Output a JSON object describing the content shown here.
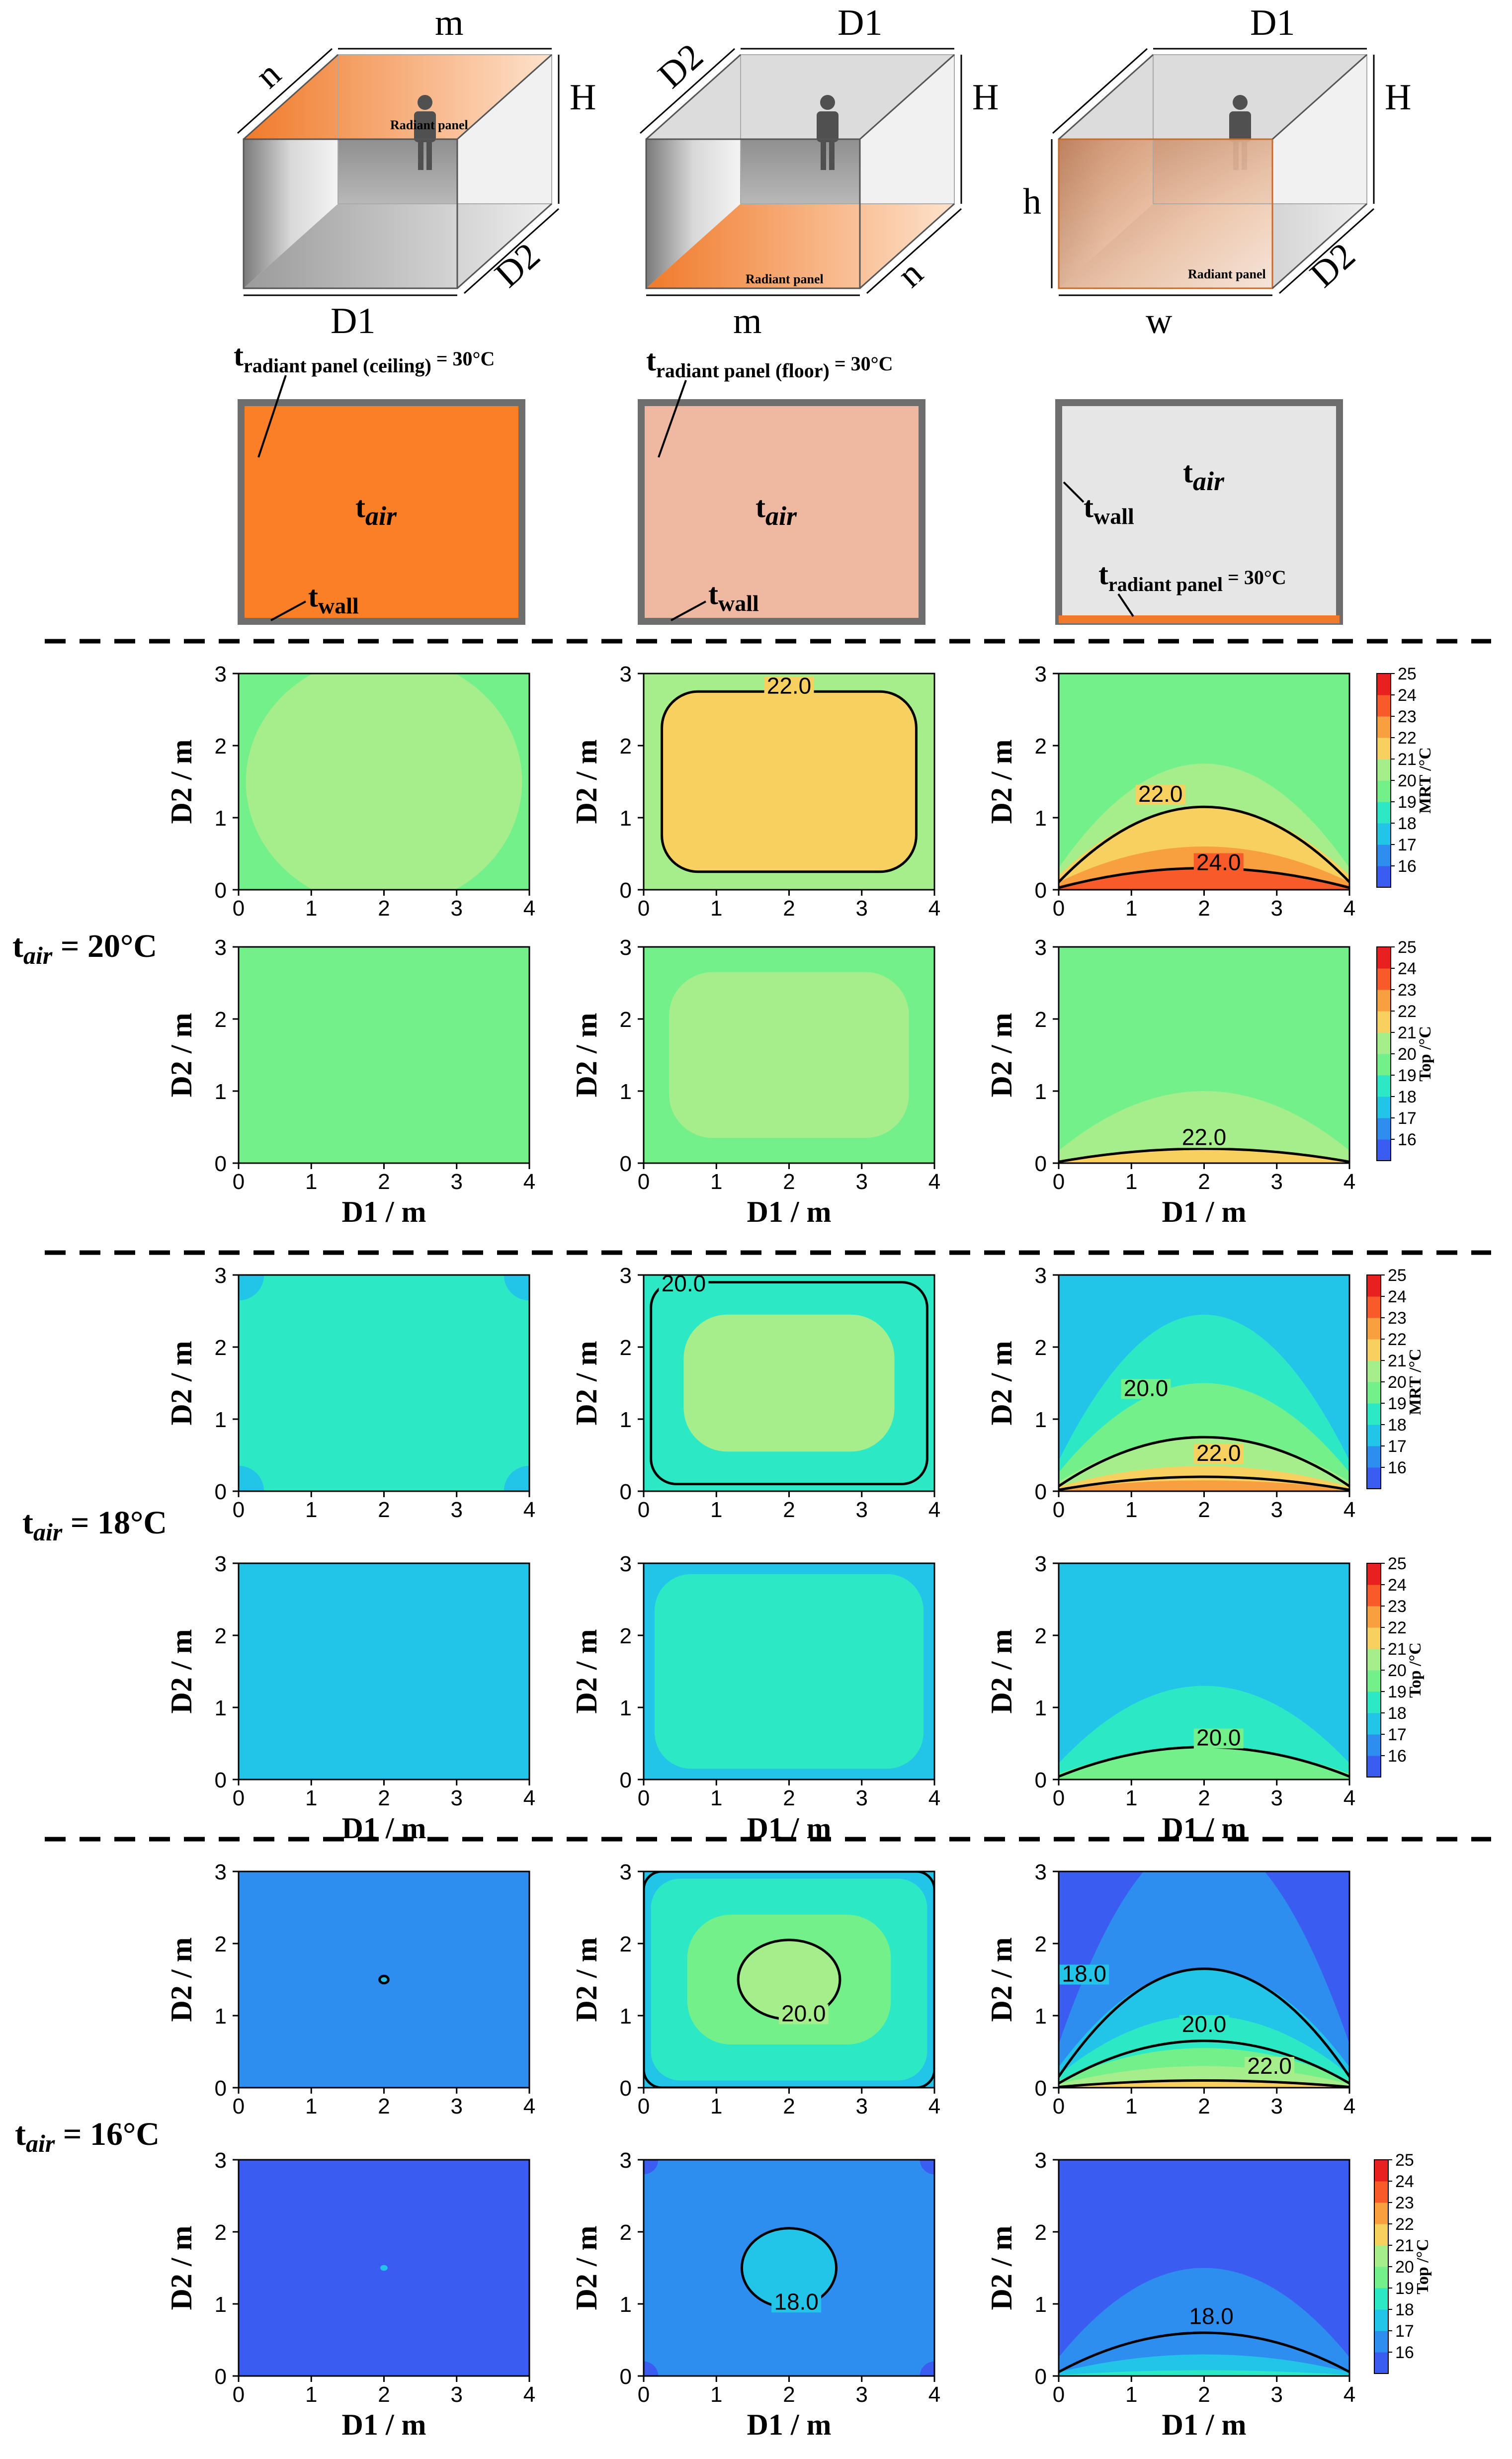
{
  "figure": {
    "geometry": [
      {
        "id": "ceiling",
        "dims": {
          "width_top": "m",
          "depth_top": "n",
          "width_bottom": "D1",
          "depth_side": "D2",
          "height": "H"
        },
        "panel_label": "Radiant panel",
        "panel_color": "#f07a2a"
      },
      {
        "id": "floor",
        "dims": {
          "width_top": "D1",
          "depth_top": "D2",
          "width_bottom": "m",
          "depth_side": "n",
          "height": "H"
        },
        "panel_label": "Radiant panel",
        "panel_color": "#f07a2a"
      },
      {
        "id": "wall",
        "dims": {
          "width_top": "D1",
          "height_front": "h",
          "width_bottom": "w",
          "depth_side": "D2",
          "height": "H"
        },
        "panel_label": "Radiant panel",
        "panel_color": "#f07a2a"
      }
    ],
    "sections": [
      {
        "id": "ceiling",
        "temp_label": "t",
        "temp_sub": "radiant panel (ceiling)",
        "temp_eq": " = 30°C",
        "air": "t",
        "air_sub": "air",
        "wall": "t",
        "wall_sub": "wall",
        "fill": "#fa7f26"
      },
      {
        "id": "floor",
        "temp_label": "t",
        "temp_sub": "radiant panel (floor)",
        "temp_eq": " = 30°C",
        "air": "t",
        "air_sub": "air",
        "wall": "t",
        "wall_sub": "wall",
        "fill": "#efb8a0"
      },
      {
        "id": "wall",
        "temp_label": "t",
        "temp_sub": "radiant panel",
        "temp_eq": " = 30°C",
        "air": "t",
        "air_sub": "air",
        "wall": "t",
        "wall_sub": "wall",
        "fill": "#e6e6e6"
      }
    ],
    "row_labels": [
      {
        "t": "t",
        "sub": "air",
        "eq": " = 20°C"
      },
      {
        "t": "t",
        "sub": "air",
        "eq": " = 18°C"
      },
      {
        "t": "t",
        "sub": "air",
        "eq": " = 16°C"
      }
    ],
    "axis": {
      "xlabel": "D1 / m",
      "ylabel": "D2 / m",
      "xticks": [
        "0",
        "1",
        "2",
        "3",
        "4"
      ],
      "yticks": [
        "0",
        "1",
        "2",
        "3"
      ]
    },
    "colorbar": {
      "ticks": [
        "25",
        "24",
        "23",
        "22",
        "21",
        "20",
        "19",
        "18",
        "17",
        "16"
      ],
      "mrt_label": "MRT /°C",
      "top_label": "Top /°C",
      "colors": [
        "#7a2ff0",
        "#3a5cf0",
        "#2d8ef0",
        "#22c4e8",
        "#2de8c4",
        "#74f08a",
        "#a6ee8c",
        "#f8d060",
        "#f8a040",
        "#f85a2a",
        "#e82020"
      ]
    }
  },
  "chart_data": [
    {
      "type": "heatmap",
      "row": "t_air = 20°C",
      "panel": "ceiling",
      "quantity": "MRT",
      "xlim": [
        0,
        4
      ],
      "ylim": [
        0,
        3
      ],
      "background_level": "20-21",
      "regions": [
        "central 21-22 region"
      ],
      "contours": []
    },
    {
      "type": "heatmap",
      "row": "t_air = 20°C",
      "panel": "floor",
      "quantity": "MRT",
      "xlim": [
        0,
        4
      ],
      "ylim": [
        0,
        3
      ],
      "background_level": "21-22",
      "regions": [
        "central 22-23 region"
      ],
      "contours": [
        {
          "level": 22.0,
          "label": "22.0"
        }
      ]
    },
    {
      "type": "heatmap",
      "row": "t_air = 20°C",
      "panel": "wall",
      "quantity": "MRT",
      "xlim": [
        0,
        4
      ],
      "ylim": [
        0,
        3
      ],
      "background_level": "20-21",
      "regions": [
        "bands increasing toward D2 = 0"
      ],
      "contours": [
        {
          "level": 22.0,
          "label": "22.0"
        },
        {
          "level": 24.0,
          "label": "24.0"
        }
      ]
    },
    {
      "type": "heatmap",
      "row": "t_air = 20°C",
      "panel": "ceiling",
      "quantity": "Top",
      "xlim": [
        0,
        4
      ],
      "ylim": [
        0,
        3
      ],
      "background_level": "20-21",
      "regions": [],
      "contours": []
    },
    {
      "type": "heatmap",
      "row": "t_air = 20°C",
      "panel": "floor",
      "quantity": "Top",
      "xlim": [
        0,
        4
      ],
      "ylim": [
        0,
        3
      ],
      "background_level": "20-21",
      "regions": [
        "central 21-22 region"
      ],
      "contours": []
    },
    {
      "type": "heatmap",
      "row": "t_air = 20°C",
      "panel": "wall",
      "quantity": "Top",
      "xlim": [
        0,
        4
      ],
      "ylim": [
        0,
        3
      ],
      "background_level": "20-21",
      "regions": [
        "bands near D2 = 0"
      ],
      "contours": [
        {
          "level": 22.0,
          "label": "22.0"
        }
      ]
    },
    {
      "type": "heatmap",
      "row": "t_air = 18°C",
      "panel": "ceiling",
      "quantity": "MRT",
      "xlim": [
        0,
        4
      ],
      "ylim": [
        0,
        3
      ],
      "background_level": "19-20",
      "regions": [
        "corners 18-19"
      ],
      "contours": []
    },
    {
      "type": "heatmap",
      "row": "t_air = 18°C",
      "panel": "floor",
      "quantity": "MRT",
      "xlim": [
        0,
        4
      ],
      "ylim": [
        0,
        3
      ],
      "background_level": "19-20",
      "regions": [
        "central 21-22 region"
      ],
      "contours": [
        {
          "level": 20.0,
          "label": "20.0"
        }
      ]
    },
    {
      "type": "heatmap",
      "row": "t_air = 18°C",
      "panel": "wall",
      "quantity": "MRT",
      "xlim": [
        0,
        4
      ],
      "ylim": [
        0,
        3
      ],
      "background_level": "18-19",
      "regions": [
        "bands increasing toward D2 = 0"
      ],
      "contours": [
        {
          "level": 20.0,
          "label": "20.0"
        },
        {
          "level": 22.0,
          "label": "22.0"
        }
      ]
    },
    {
      "type": "heatmap",
      "row": "t_air = 18°C",
      "panel": "ceiling",
      "quantity": "Top",
      "xlim": [
        0,
        4
      ],
      "ylim": [
        0,
        3
      ],
      "background_level": "18-19",
      "regions": [],
      "contours": []
    },
    {
      "type": "heatmap",
      "row": "t_air = 18°C",
      "panel": "floor",
      "quantity": "Top",
      "xlim": [
        0,
        4
      ],
      "ylim": [
        0,
        3
      ],
      "background_level": "18-19",
      "regions": [
        "central 19-20 region"
      ],
      "contours": []
    },
    {
      "type": "heatmap",
      "row": "t_air = 18°C",
      "panel": "wall",
      "quantity": "Top",
      "xlim": [
        0,
        4
      ],
      "ylim": [
        0,
        3
      ],
      "background_level": "18-19",
      "regions": [
        "bands near D2 = 0"
      ],
      "contours": [
        {
          "level": 20.0,
          "label": "20.0"
        }
      ]
    },
    {
      "type": "heatmap",
      "row": "t_air = 16°C",
      "panel": "ceiling",
      "quantity": "MRT",
      "xlim": [
        0,
        4
      ],
      "ylim": [
        0,
        3
      ],
      "background_level": "17-18",
      "regions": [
        "small spot at center"
      ],
      "contours": []
    },
    {
      "type": "heatmap",
      "row": "t_air = 16°C",
      "panel": "floor",
      "quantity": "MRT",
      "xlim": [
        0,
        4
      ],
      "ylim": [
        0,
        3
      ],
      "background_level": "18-19",
      "regions": [
        "central 19-20 and 20-21 regions"
      ],
      "contours": [
        {
          "level": 20.0,
          "label": "20.0"
        }
      ]
    },
    {
      "type": "heatmap",
      "row": "t_air = 16°C",
      "panel": "wall",
      "quantity": "MRT",
      "xlim": [
        0,
        4
      ],
      "ylim": [
        0,
        3
      ],
      "background_level": "16-17",
      "regions": [
        "bands increasing toward D2 = 0"
      ],
      "contours": [
        {
          "level": 18.0,
          "label": "18.0"
        },
        {
          "level": 20.0,
          "label": "20.0"
        },
        {
          "level": 22.0,
          "label": "22.0"
        }
      ]
    },
    {
      "type": "heatmap",
      "row": "t_air = 16°C",
      "panel": "ceiling",
      "quantity": "Top",
      "xlim": [
        0,
        4
      ],
      "ylim": [
        0,
        3
      ],
      "background_level": "16-17",
      "regions": [
        "small spot at center"
      ],
      "contours": []
    },
    {
      "type": "heatmap",
      "row": "t_air = 16°C",
      "panel": "floor",
      "quantity": "Top",
      "xlim": [
        0,
        4
      ],
      "ylim": [
        0,
        3
      ],
      "background_level": "17-18",
      "regions": [
        "central 18-19 region"
      ],
      "contours": [
        {
          "level": 18.0,
          "label": "18.0"
        }
      ]
    },
    {
      "type": "heatmap",
      "row": "t_air = 16°C",
      "panel": "wall",
      "quantity": "Top",
      "xlim": [
        0,
        4
      ],
      "ylim": [
        0,
        3
      ],
      "background_level": "16-17",
      "regions": [
        "bands near D2 = 0"
      ],
      "contours": [
        {
          "level": 18.0,
          "label": "18.0"
        }
      ]
    }
  ]
}
